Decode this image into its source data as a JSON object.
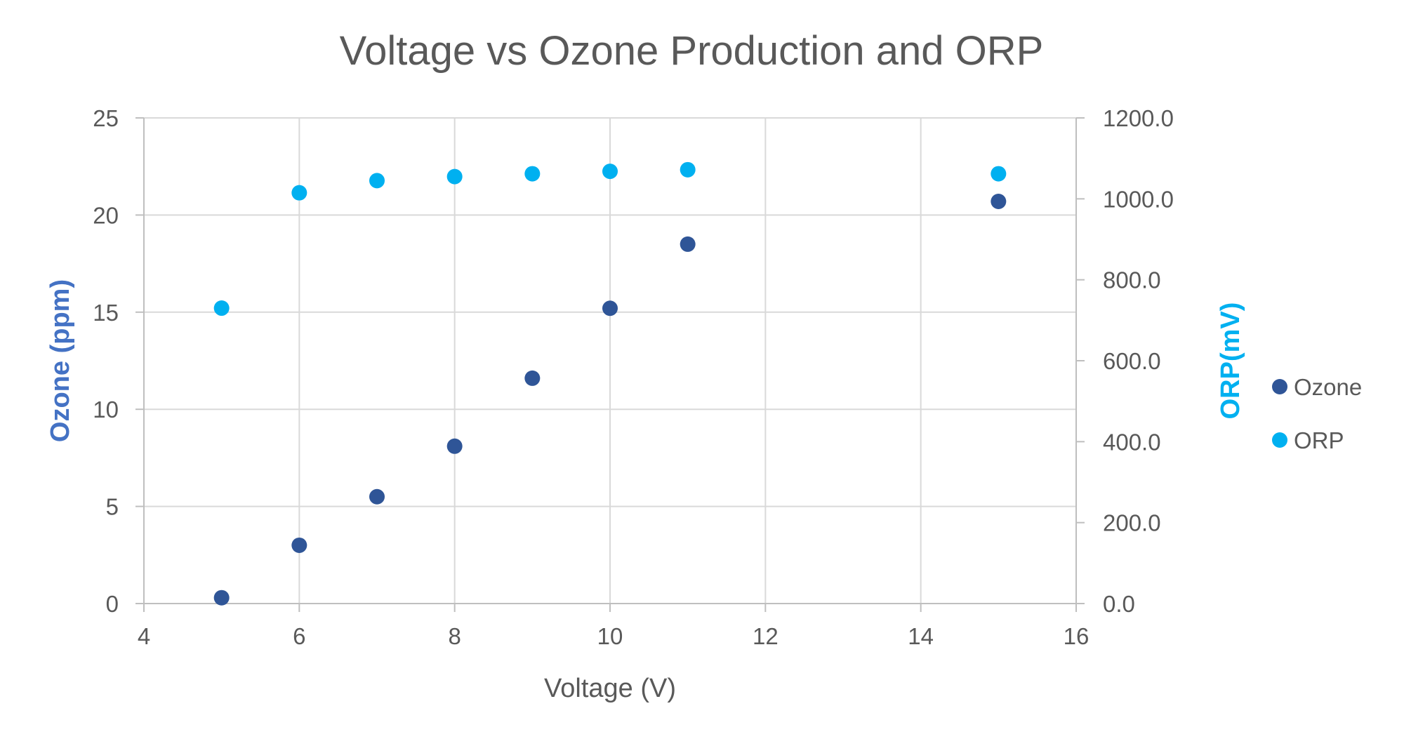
{
  "chart_data": {
    "type": "scatter",
    "title": "Voltage vs Ozone Production and ORP",
    "xlabel": "Voltage (V)",
    "ylabel": "Ozone (ppm)",
    "y2label": "ORP(mV)",
    "xlim": [
      4,
      16
    ],
    "xticks": [
      "4",
      "6",
      "8",
      "10",
      "12",
      "14",
      "16"
    ],
    "ylim": [
      0,
      25
    ],
    "yticks": [
      "0",
      "5",
      "10",
      "15",
      "20",
      "25"
    ],
    "y2lim": [
      0,
      1200
    ],
    "y2ticks": [
      "0.0",
      "200.0",
      "400.0",
      "600.0",
      "800.0",
      "1000.0",
      "1200.0"
    ],
    "grid": true,
    "legend_position": "right",
    "colors": {
      "ozone": "#2F5597",
      "orp": "#00B0F0",
      "ylabel": "#4472C4",
      "y2label": "#00B0F0",
      "grid": "#D9D9D9",
      "axis": "#BFBFBF"
    },
    "series": [
      {
        "name": "Ozone",
        "axis": "left",
        "x": [
          5,
          6,
          7,
          8,
          9,
          10,
          11,
          15
        ],
        "y": [
          0.3,
          3.0,
          5.5,
          8.1,
          11.6,
          15.2,
          18.5,
          20.7
        ]
      },
      {
        "name": "ORP",
        "axis": "right",
        "x": [
          5,
          6,
          7,
          8,
          9,
          10,
          11,
          15
        ],
        "y": [
          730,
          1015,
          1045,
          1055,
          1062,
          1068,
          1072,
          1062
        ]
      }
    ]
  }
}
